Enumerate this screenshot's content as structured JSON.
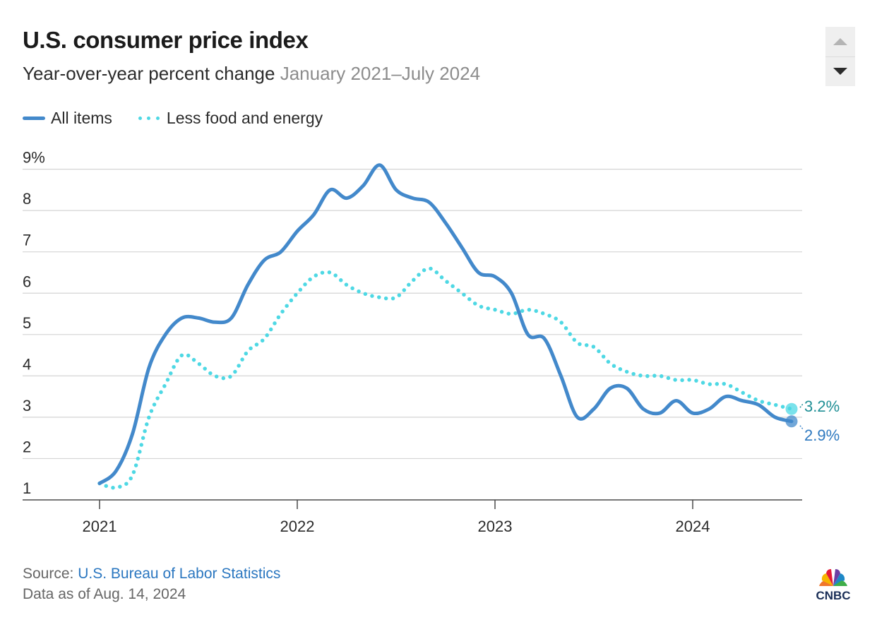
{
  "title": "U.S. consumer price index",
  "subtitle": "Year-over-year percent change",
  "date_range": "January 2021–July 2024",
  "legend": {
    "all_items": "All items",
    "core": "Less food and energy"
  },
  "source_label": "Source:",
  "source_name": "U.S. Bureau of Labor Statistics",
  "data_as_of": "Data as of Aug. 14, 2024",
  "logo_text": "CNBC",
  "scroll_controls": {
    "up_icon": "triangle-up-icon",
    "down_icon": "triangle-down-icon"
  },
  "colors": {
    "all_items": "#4389cb",
    "core": "#4ed8e4",
    "core_label": "#1f8f95",
    "grid": "#d4d4d4",
    "axis": "#4a4a4a"
  },
  "chart_data": {
    "type": "line",
    "xlabel": "",
    "ylabel": "",
    "ylim": [
      1,
      9
    ],
    "yticks": [
      1,
      2,
      3,
      4,
      5,
      6,
      7,
      8,
      9
    ],
    "ytick_labels": [
      "1",
      "2",
      "3",
      "4",
      "5",
      "6",
      "7",
      "8",
      "9%"
    ],
    "xticks": [
      "2021",
      "2022",
      "2023",
      "2024"
    ],
    "grid": true,
    "legend_position": "top-left",
    "x": [
      "2021-01",
      "2021-02",
      "2021-03",
      "2021-04",
      "2021-05",
      "2021-06",
      "2021-07",
      "2021-08",
      "2021-09",
      "2021-10",
      "2021-11",
      "2021-12",
      "2022-01",
      "2022-02",
      "2022-03",
      "2022-04",
      "2022-05",
      "2022-06",
      "2022-07",
      "2022-08",
      "2022-09",
      "2022-10",
      "2022-11",
      "2022-12",
      "2023-01",
      "2023-02",
      "2023-03",
      "2023-04",
      "2023-05",
      "2023-06",
      "2023-07",
      "2023-08",
      "2023-09",
      "2023-10",
      "2023-11",
      "2023-12",
      "2024-01",
      "2024-02",
      "2024-03",
      "2024-04",
      "2024-05",
      "2024-06",
      "2024-07"
    ],
    "series": [
      {
        "name": "All items",
        "style": "solid",
        "end_label": "2.9%",
        "values": [
          1.4,
          1.7,
          2.6,
          4.2,
          5.0,
          5.4,
          5.4,
          5.3,
          5.4,
          6.2,
          6.8,
          7.0,
          7.5,
          7.9,
          8.5,
          8.3,
          8.6,
          9.1,
          8.5,
          8.3,
          8.2,
          7.7,
          7.1,
          6.5,
          6.4,
          6.0,
          5.0,
          4.9,
          4.0,
          3.0,
          3.2,
          3.7,
          3.7,
          3.2,
          3.1,
          3.4,
          3.1,
          3.2,
          3.5,
          3.4,
          3.3,
          3.0,
          2.9
        ]
      },
      {
        "name": "Less food and energy",
        "style": "dotted",
        "end_label": "3.2%",
        "values": [
          1.4,
          1.3,
          1.6,
          3.0,
          3.8,
          4.5,
          4.3,
          4.0,
          4.0,
          4.6,
          4.9,
          5.5,
          6.0,
          6.4,
          6.5,
          6.2,
          6.0,
          5.9,
          5.9,
          6.3,
          6.6,
          6.3,
          6.0,
          5.7,
          5.6,
          5.5,
          5.6,
          5.5,
          5.3,
          4.8,
          4.7,
          4.3,
          4.1,
          4.0,
          4.0,
          3.9,
          3.9,
          3.8,
          3.8,
          3.6,
          3.4,
          3.3,
          3.2
        ]
      }
    ]
  }
}
